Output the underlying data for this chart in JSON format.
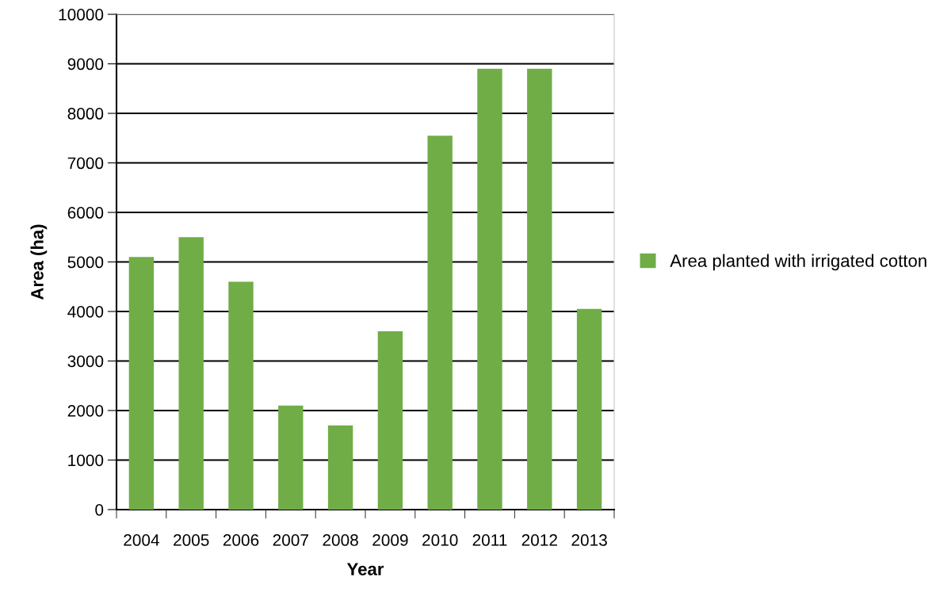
{
  "chart_data": {
    "type": "bar",
    "xlabel": "Year",
    "ylabel": "Area (ha)",
    "categories": [
      "2004",
      "2005",
      "2006",
      "2007",
      "2008",
      "2009",
      "2010",
      "2011",
      "2012",
      "2013"
    ],
    "series": [
      {
        "name": "Area planted with irrigated cotton",
        "color": "#70ad47",
        "values": [
          5100,
          5500,
          4600,
          2100,
          1700,
          3600,
          7550,
          8900,
          8900,
          4050
        ]
      }
    ],
    "ylim": [
      0,
      10000
    ],
    "yticks": [
      0,
      1000,
      2000,
      3000,
      4000,
      5000,
      6000,
      7000,
      8000,
      9000,
      10000
    ],
    "grid": "y",
    "legend": "right"
  }
}
